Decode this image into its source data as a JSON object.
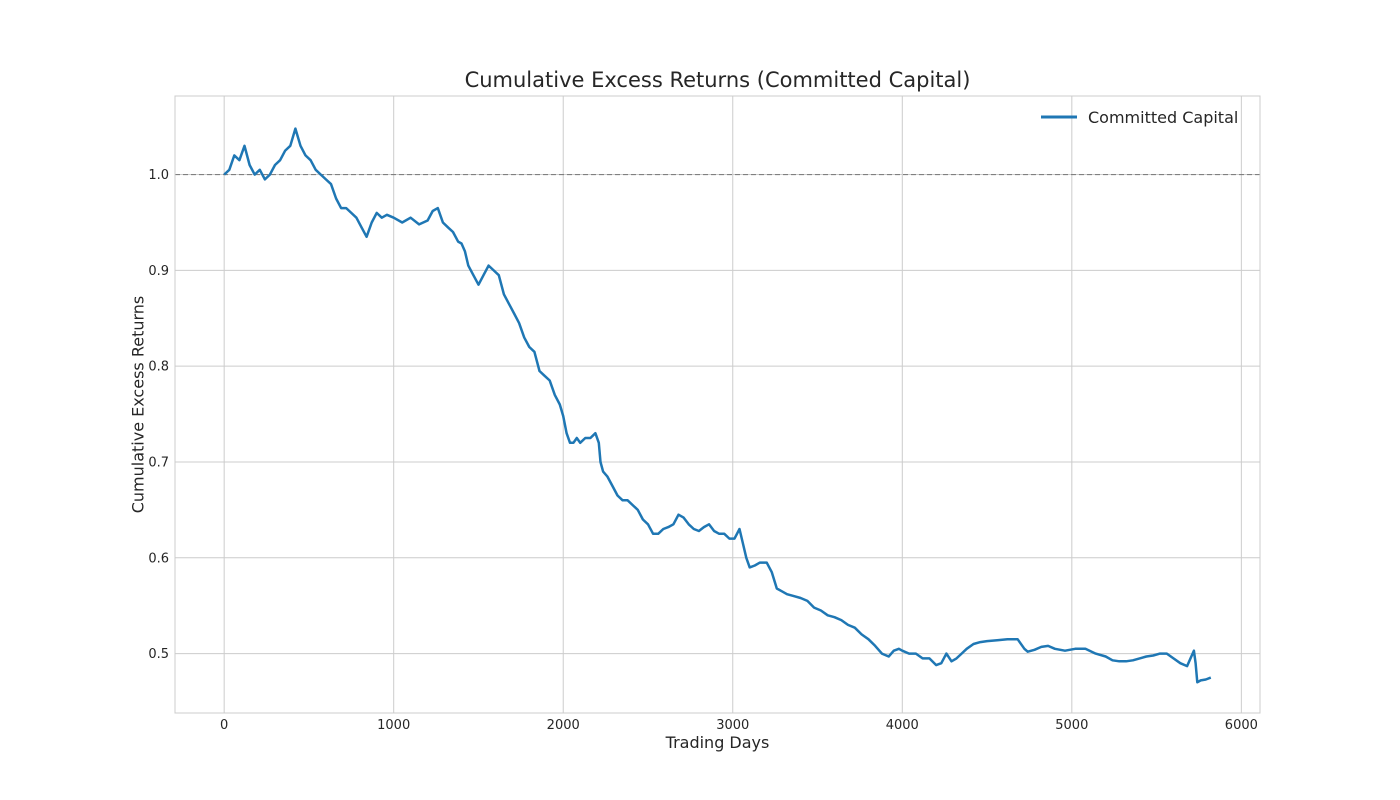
{
  "chart_data": {
    "type": "line",
    "title": "Cumulative Excess Returns (Committed Capital)",
    "xlabel": "Trading Days",
    "ylabel": "Cumulative Excess Returns",
    "xlim": [
      -290,
      6110
    ],
    "ylim": [
      0.438,
      1.082
    ],
    "xticks": [
      0,
      1000,
      2000,
      3000,
      4000,
      5000,
      6000
    ],
    "yticks": [
      0.5,
      0.6,
      0.7,
      0.8,
      0.9,
      1.0
    ],
    "xtick_labels": [
      "0",
      "1000",
      "2000",
      "3000",
      "4000",
      "5000",
      "6000"
    ],
    "ytick_labels": [
      "0.5",
      "0.6",
      "0.7",
      "0.8",
      "0.9",
      "1.0"
    ],
    "grid": true,
    "legend_position": "top-right",
    "reference_line": {
      "y": 1.0,
      "style": "dashed",
      "color": "#808080"
    },
    "series": [
      {
        "name": "Committed Capital",
        "color": "#1f77b4",
        "x": [
          0,
          30,
          60,
          90,
          120,
          150,
          180,
          210,
          240,
          270,
          300,
          330,
          360,
          390,
          420,
          450,
          480,
          510,
          540,
          570,
          600,
          630,
          660,
          690,
          720,
          750,
          780,
          810,
          840,
          870,
          900,
          930,
          960,
          1000,
          1050,
          1100,
          1150,
          1200,
          1230,
          1260,
          1290,
          1320,
          1350,
          1380,
          1400,
          1420,
          1440,
          1470,
          1500,
          1530,
          1560,
          1590,
          1620,
          1650,
          1680,
          1710,
          1740,
          1770,
          1800,
          1830,
          1860,
          1890,
          1920,
          1950,
          1980,
          2000,
          2020,
          2040,
          2060,
          2080,
          2100,
          2130,
          2160,
          2190,
          2210,
          2220,
          2235,
          2260,
          2290,
          2320,
          2350,
          2380,
          2410,
          2440,
          2470,
          2500,
          2530,
          2560,
          2590,
          2620,
          2650,
          2680,
          2710,
          2740,
          2770,
          2800,
          2830,
          2860,
          2890,
          2920,
          2950,
          2980,
          3010,
          3040,
          3060,
          3080,
          3100,
          3130,
          3160,
          3200,
          3230,
          3260,
          3290,
          3320,
          3360,
          3400,
          3440,
          3480,
          3520,
          3560,
          3600,
          3640,
          3680,
          3720,
          3760,
          3800,
          3840,
          3880,
          3920,
          3950,
          3980,
          4000,
          4040,
          4080,
          4120,
          4160,
          4200,
          4230,
          4260,
          4290,
          4320,
          4350,
          4380,
          4420,
          4460,
          4500,
          4560,
          4620,
          4680,
          4720,
          4740,
          4780,
          4820,
          4860,
          4900,
          4960,
          5020,
          5080,
          5140,
          5200,
          5240,
          5280,
          5320,
          5360,
          5400,
          5440,
          5480,
          5520,
          5560,
          5600,
          5640,
          5680,
          5700,
          5720,
          5730,
          5740,
          5760,
          5790,
          5820
        ],
        "y": [
          1.0,
          1.005,
          1.02,
          1.015,
          1.03,
          1.01,
          1.0,
          1.005,
          0.995,
          1.0,
          1.01,
          1.015,
          1.025,
          1.03,
          1.048,
          1.03,
          1.02,
          1.015,
          1.005,
          1.0,
          0.995,
          0.99,
          0.975,
          0.965,
          0.965,
          0.96,
          0.955,
          0.945,
          0.935,
          0.95,
          0.96,
          0.955,
          0.958,
          0.955,
          0.95,
          0.955,
          0.948,
          0.952,
          0.962,
          0.965,
          0.95,
          0.945,
          0.94,
          0.93,
          0.928,
          0.92,
          0.905,
          0.895,
          0.885,
          0.895,
          0.905,
          0.9,
          0.895,
          0.875,
          0.865,
          0.855,
          0.845,
          0.83,
          0.82,
          0.815,
          0.795,
          0.79,
          0.785,
          0.77,
          0.76,
          0.748,
          0.73,
          0.72,
          0.72,
          0.725,
          0.72,
          0.725,
          0.725,
          0.73,
          0.72,
          0.7,
          0.69,
          0.685,
          0.675,
          0.665,
          0.66,
          0.66,
          0.655,
          0.65,
          0.64,
          0.635,
          0.625,
          0.625,
          0.63,
          0.632,
          0.635,
          0.645,
          0.642,
          0.635,
          0.63,
          0.628,
          0.632,
          0.635,
          0.628,
          0.625,
          0.625,
          0.62,
          0.62,
          0.63,
          0.615,
          0.6,
          0.59,
          0.592,
          0.595,
          0.595,
          0.585,
          0.568,
          0.565,
          0.562,
          0.56,
          0.558,
          0.555,
          0.548,
          0.545,
          0.54,
          0.538,
          0.535,
          0.53,
          0.527,
          0.52,
          0.515,
          0.508,
          0.5,
          0.497,
          0.503,
          0.505,
          0.503,
          0.5,
          0.5,
          0.495,
          0.495,
          0.488,
          0.49,
          0.5,
          0.492,
          0.495,
          0.5,
          0.505,
          0.51,
          0.512,
          0.513,
          0.514,
          0.515,
          0.515,
          0.505,
          0.502,
          0.504,
          0.507,
          0.508,
          0.505,
          0.503,
          0.505,
          0.505,
          0.5,
          0.497,
          0.493,
          0.492,
          0.492,
          0.493,
          0.495,
          0.497,
          0.498,
          0.5,
          0.5,
          0.495,
          0.49,
          0.487,
          0.495,
          0.503,
          0.49,
          0.47,
          0.472,
          0.473,
          0.475
        ]
      }
    ]
  }
}
